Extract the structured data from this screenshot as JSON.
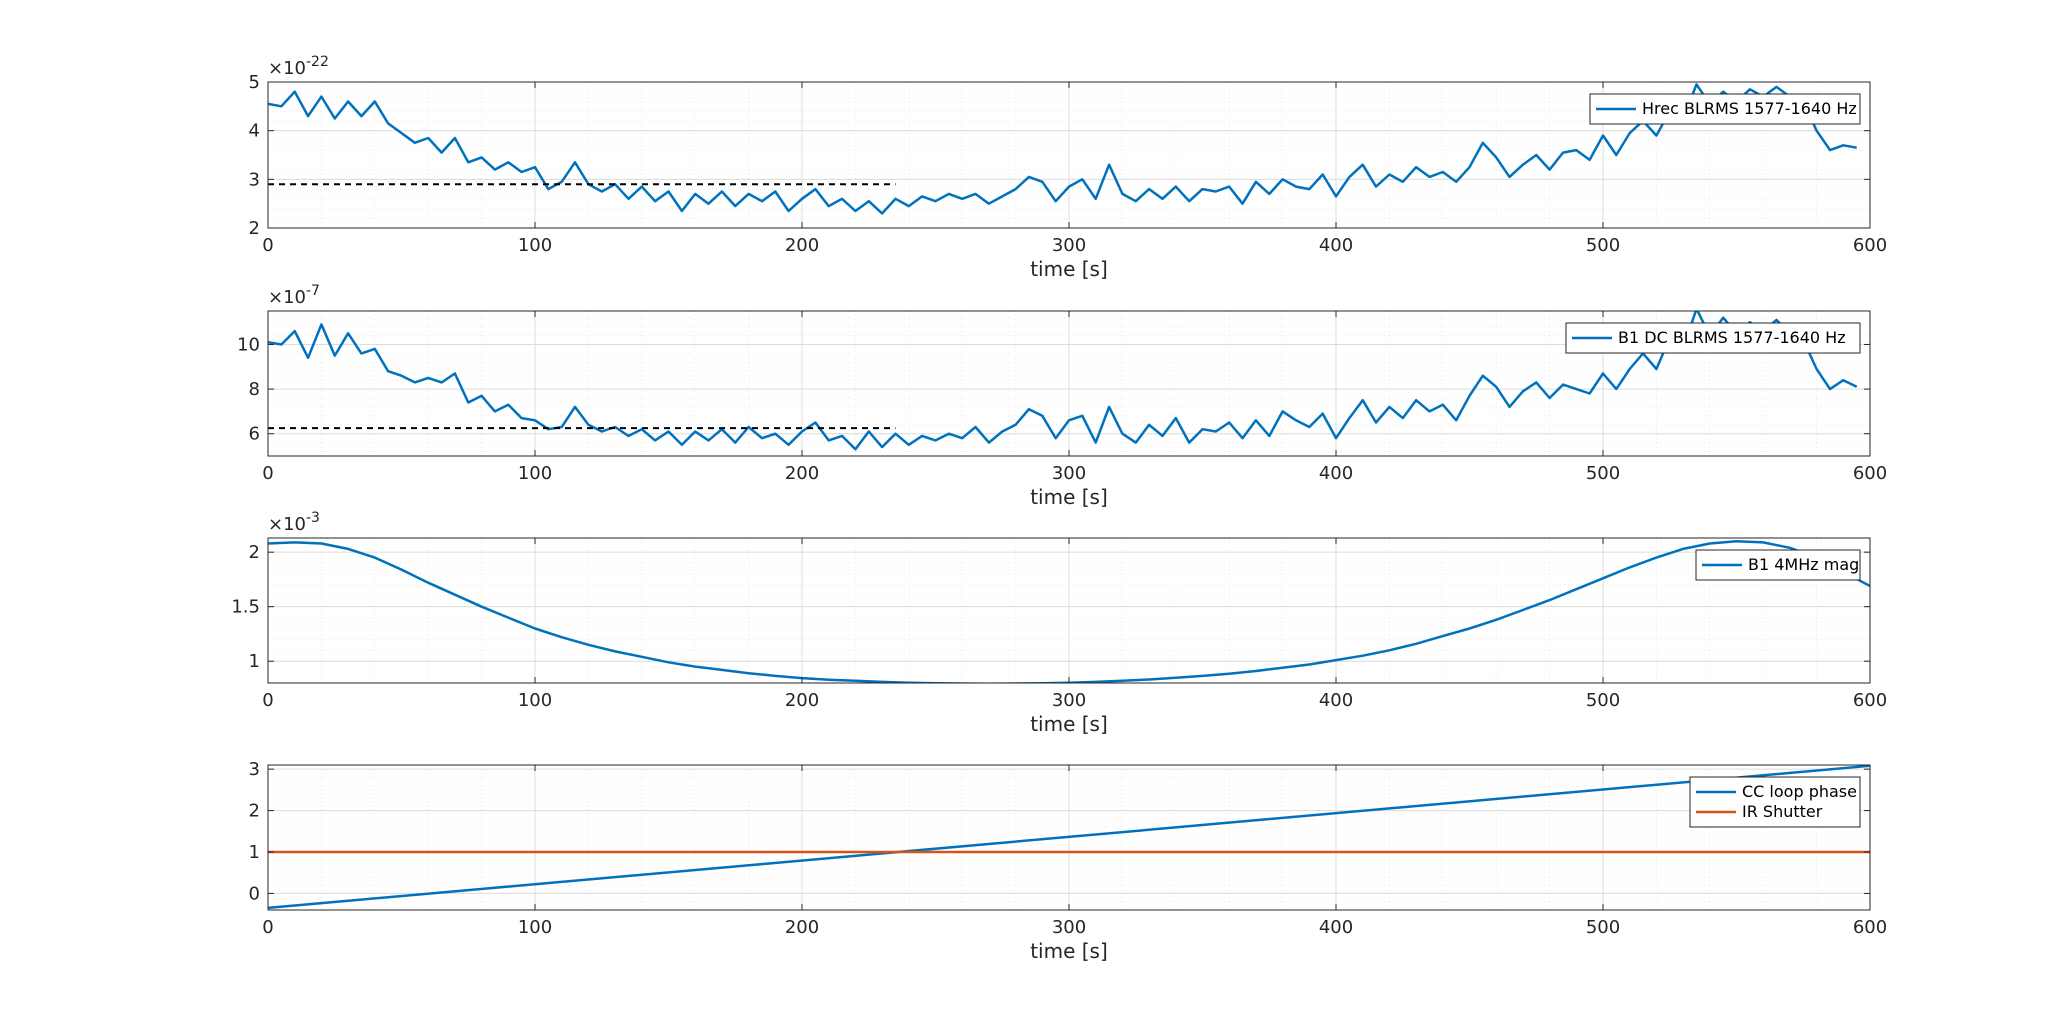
{
  "chart_data": [
    {
      "type": "line",
      "xlabel": "time [s]",
      "xlim": [
        0,
        600
      ],
      "xticks": [
        0,
        100,
        200,
        300,
        400,
        500,
        600
      ],
      "ylim": [
        2,
        5
      ],
      "yticks": [
        2,
        3,
        4,
        5
      ],
      "y_exponent": "-22",
      "grid": "major+minor",
      "legend_position": "top-right",
      "series": [
        {
          "name": "Hrec BLRMS 1577-1640 Hz",
          "color": "#0072BD",
          "x": [
            0,
            5,
            10,
            15,
            20,
            25,
            30,
            35,
            40,
            45,
            50,
            55,
            60,
            65,
            70,
            75,
            80,
            85,
            90,
            95,
            100,
            105,
            110,
            115,
            120,
            125,
            130,
            135,
            140,
            145,
            150,
            155,
            160,
            165,
            170,
            175,
            180,
            185,
            190,
            195,
            200,
            205,
            210,
            215,
            220,
            225,
            230,
            235,
            240,
            245,
            250,
            255,
            260,
            265,
            270,
            275,
            280,
            285,
            290,
            295,
            300,
            305,
            310,
            315,
            320,
            325,
            330,
            335,
            340,
            345,
            350,
            355,
            360,
            365,
            370,
            375,
            380,
            385,
            390,
            395,
            400,
            405,
            410,
            415,
            420,
            425,
            430,
            435,
            440,
            445,
            450,
            455,
            460,
            465,
            470,
            475,
            480,
            485,
            490,
            495,
            500,
            505,
            510,
            515,
            520,
            525,
            530,
            535,
            540,
            545,
            550,
            555,
            560,
            565,
            570,
            575,
            580,
            585,
            590,
            595
          ],
          "y": [
            4.55,
            4.5,
            4.8,
            4.3,
            4.7,
            4.25,
            4.6,
            4.3,
            4.6,
            4.15,
            3.95,
            3.75,
            3.85,
            3.55,
            3.85,
            3.35,
            3.45,
            3.2,
            3.35,
            3.15,
            3.25,
            2.8,
            2.95,
            3.35,
            2.9,
            2.75,
            2.9,
            2.6,
            2.85,
            2.55,
            2.75,
            2.35,
            2.7,
            2.5,
            2.75,
            2.45,
            2.7,
            2.55,
            2.75,
            2.35,
            2.6,
            2.8,
            2.45,
            2.6,
            2.35,
            2.55,
            2.3,
            2.6,
            2.45,
            2.65,
            2.55,
            2.7,
            2.6,
            2.7,
            2.5,
            2.65,
            2.8,
            3.05,
            2.95,
            2.55,
            2.85,
            3.0,
            2.6,
            3.3,
            2.7,
            2.55,
            2.8,
            2.6,
            2.85,
            2.55,
            2.8,
            2.75,
            2.85,
            2.5,
            2.95,
            2.7,
            3.0,
            2.85,
            2.8,
            3.1,
            2.65,
            3.05,
            3.3,
            2.85,
            3.1,
            2.95,
            3.25,
            3.05,
            3.15,
            2.95,
            3.25,
            3.75,
            3.45,
            3.05,
            3.3,
            3.5,
            3.2,
            3.55,
            3.6,
            3.4,
            3.9,
            3.5,
            3.95,
            4.2,
            3.9,
            4.4,
            4.25,
            4.95,
            4.55,
            4.8,
            4.6,
            4.85,
            4.7,
            4.9,
            4.7,
            4.6,
            4.0,
            3.6,
            3.7,
            3.65
          ]
        },
        {
          "name": "",
          "color": "#000000",
          "dash": "6,5",
          "x": [
            0,
            235
          ],
          "y": [
            2.9,
            2.9
          ]
        }
      ]
    },
    {
      "type": "line",
      "xlabel": "time [s]",
      "xlim": [
        0,
        600
      ],
      "xticks": [
        0,
        100,
        200,
        300,
        400,
        500,
        600
      ],
      "ylim": [
        5,
        11.5
      ],
      "yticks": [
        6,
        8,
        10
      ],
      "y_exponent": "-7",
      "grid": "major+minor",
      "legend_position": "top-right",
      "series": [
        {
          "name": "B1 DC BLRMS 1577-1640 Hz",
          "color": "#0072BD",
          "x": [
            0,
            5,
            10,
            15,
            20,
            25,
            30,
            35,
            40,
            45,
            50,
            55,
            60,
            65,
            70,
            75,
            80,
            85,
            90,
            95,
            100,
            105,
            110,
            115,
            120,
            125,
            130,
            135,
            140,
            145,
            150,
            155,
            160,
            165,
            170,
            175,
            180,
            185,
            190,
            195,
            200,
            205,
            210,
            215,
            220,
            225,
            230,
            235,
            240,
            245,
            250,
            255,
            260,
            265,
            270,
            275,
            280,
            285,
            290,
            295,
            300,
            305,
            310,
            315,
            320,
            325,
            330,
            335,
            340,
            345,
            350,
            355,
            360,
            365,
            370,
            375,
            380,
            385,
            390,
            395,
            400,
            405,
            410,
            415,
            420,
            425,
            430,
            435,
            440,
            445,
            450,
            455,
            460,
            465,
            470,
            475,
            480,
            485,
            490,
            495,
            500,
            505,
            510,
            515,
            520,
            525,
            530,
            535,
            540,
            545,
            550,
            555,
            560,
            565,
            570,
            575,
            580,
            585,
            590,
            595
          ],
          "y": [
            10.1,
            10.0,
            10.6,
            9.4,
            10.9,
            9.5,
            10.5,
            9.6,
            9.8,
            8.8,
            8.6,
            8.3,
            8.5,
            8.3,
            8.7,
            7.4,
            7.7,
            7.0,
            7.3,
            6.7,
            6.6,
            6.2,
            6.3,
            7.2,
            6.4,
            6.1,
            6.3,
            5.9,
            6.2,
            5.7,
            6.1,
            5.5,
            6.1,
            5.7,
            6.2,
            5.6,
            6.3,
            5.8,
            6.0,
            5.5,
            6.1,
            6.5,
            5.7,
            5.9,
            5.3,
            6.1,
            5.4,
            6.0,
            5.5,
            5.9,
            5.7,
            6.0,
            5.8,
            6.3,
            5.6,
            6.1,
            6.4,
            7.1,
            6.8,
            5.8,
            6.6,
            6.8,
            5.6,
            7.2,
            6.0,
            5.6,
            6.4,
            5.9,
            6.7,
            5.6,
            6.2,
            6.1,
            6.5,
            5.8,
            6.6,
            5.9,
            7.0,
            6.6,
            6.3,
            6.9,
            5.8,
            6.7,
            7.5,
            6.5,
            7.2,
            6.7,
            7.5,
            7.0,
            7.3,
            6.6,
            7.7,
            8.6,
            8.1,
            7.2,
            7.9,
            8.3,
            7.6,
            8.2,
            8.0,
            7.8,
            8.7,
            8.0,
            8.9,
            9.6,
            8.9,
            10.3,
            9.8,
            11.6,
            10.4,
            11.2,
            10.5,
            11.0,
            10.6,
            11.1,
            10.5,
            10.2,
            8.9,
            8.0,
            8.4,
            8.1
          ]
        },
        {
          "name": "",
          "color": "#000000",
          "dash": "6,5",
          "x": [
            0,
            235
          ],
          "y": [
            6.25,
            6.25
          ]
        }
      ]
    },
    {
      "type": "line",
      "xlabel": "time [s]",
      "xlim": [
        0,
        600
      ],
      "xticks": [
        0,
        100,
        200,
        300,
        400,
        500,
        600
      ],
      "ylim": [
        0.8,
        2.13
      ],
      "yticks": [
        1,
        1.5,
        2
      ],
      "y_exponent": "-3",
      "grid": "major+minor",
      "legend_position": "top-right",
      "series": [
        {
          "name": "B1 4MHz mag",
          "color": "#0072BD",
          "x": [
            0,
            10,
            20,
            30,
            40,
            50,
            60,
            70,
            80,
            90,
            100,
            110,
            120,
            130,
            140,
            150,
            160,
            170,
            180,
            190,
            200,
            210,
            220,
            230,
            240,
            250,
            260,
            270,
            280,
            290,
            300,
            310,
            320,
            330,
            340,
            350,
            360,
            370,
            380,
            390,
            400,
            410,
            420,
            430,
            440,
            450,
            460,
            470,
            480,
            490,
            500,
            510,
            520,
            530,
            540,
            550,
            560,
            570,
            580,
            590,
            600
          ],
          "y": [
            2.08,
            2.09,
            2.08,
            2.03,
            1.95,
            1.84,
            1.72,
            1.61,
            1.5,
            1.4,
            1.3,
            1.22,
            1.15,
            1.09,
            1.04,
            0.99,
            0.95,
            0.92,
            0.89,
            0.865,
            0.845,
            0.83,
            0.82,
            0.81,
            0.803,
            0.798,
            0.795,
            0.794,
            0.795,
            0.798,
            0.803,
            0.81,
            0.82,
            0.832,
            0.848,
            0.865,
            0.885,
            0.91,
            0.94,
            0.97,
            1.01,
            1.05,
            1.1,
            1.16,
            1.23,
            1.3,
            1.38,
            1.47,
            1.56,
            1.66,
            1.76,
            1.86,
            1.95,
            2.03,
            2.08,
            2.1,
            2.09,
            2.04,
            1.95,
            1.82,
            1.69
          ]
        }
      ]
    },
    {
      "type": "line",
      "xlabel": "time [s]",
      "xlim": [
        0,
        600
      ],
      "xticks": [
        0,
        100,
        200,
        300,
        400,
        500,
        600
      ],
      "ylim": [
        -0.4,
        3.1
      ],
      "yticks": [
        0,
        1,
        2,
        3
      ],
      "y_exponent": "",
      "grid": "major+minor",
      "legend_position": "top-right",
      "series": [
        {
          "name": "CC loop phase",
          "color": "#0072BD",
          "x": [
            0,
            600
          ],
          "y": [
            -0.35,
            3.08
          ]
        },
        {
          "name": "IR Shutter",
          "color": "#D95319",
          "x": [
            0,
            600
          ],
          "y": [
            1.0,
            1.0
          ]
        }
      ]
    }
  ]
}
